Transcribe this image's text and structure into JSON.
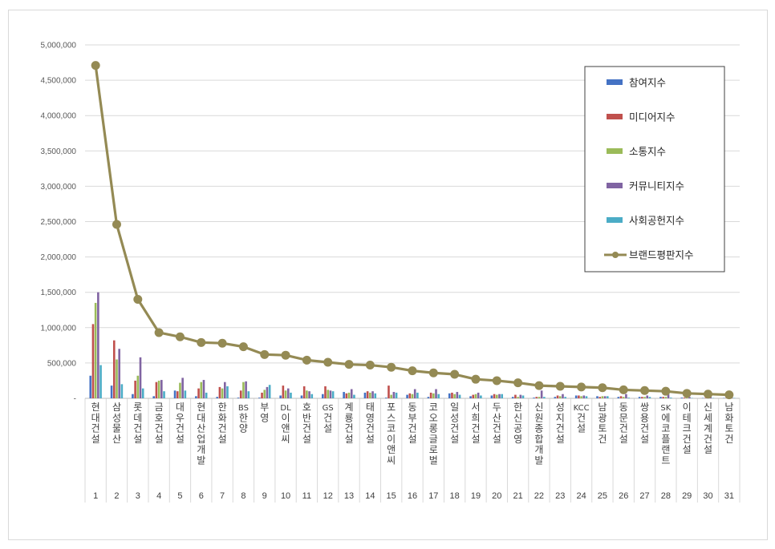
{
  "chart_data": {
    "type": "bar+line",
    "yticks": [
      "5,000,000",
      "4,500,000",
      "4,000,000",
      "3,500,000",
      "3,000,000",
      "2,500,000",
      "2,000,000",
      "1,500,000",
      "1,000,000",
      "500,000",
      "-"
    ],
    "ylim": [
      0,
      5000000
    ],
    "grid": true,
    "legend_position": "top-right",
    "categories": [
      "현대건설",
      "삼성물산",
      "롯데건설",
      "금호건설",
      "대우건설",
      "현대산업개발",
      "한화건설",
      "BS한양",
      "부영",
      "DL이앤씨",
      "호반건설",
      "GS건설",
      "계룡건설",
      "태영건설",
      "포스코이앤씨",
      "동부건설",
      "코오롱글로벌",
      "일성건설",
      "서희건설",
      "두산건설",
      "한신공영",
      "신원종합개발",
      "성지건설",
      "KCC건설",
      "남광토건",
      "동문건설",
      "쌍용건설",
      "SK에코플랜트",
      "이테크건설",
      "신세계건설",
      "남화토건"
    ],
    "ranks": [
      "1",
      "2",
      "3",
      "4",
      "5",
      "6",
      "7",
      "8",
      "9",
      "10",
      "11",
      "12",
      "13",
      "14",
      "15",
      "16",
      "17",
      "18",
      "19",
      "20",
      "21",
      "22",
      "23",
      "24",
      "25",
      "26",
      "27",
      "28",
      "29",
      "30",
      "31"
    ],
    "series": [
      {
        "name": "참여지수",
        "color": "#4472c4",
        "values": [
          320000,
          180000,
          60000,
          30000,
          110000,
          30000,
          20000,
          10000,
          10000,
          40000,
          40000,
          60000,
          90000,
          80000,
          10000,
          50000,
          20000,
          70000,
          30000,
          40000,
          20000,
          10000,
          20000,
          40000,
          30000,
          20000,
          20000,
          20000,
          10000,
          5000,
          5000
        ]
      },
      {
        "name": "미디어지수",
        "color": "#c0504d",
        "values": [
          1050000,
          820000,
          250000,
          230000,
          100000,
          140000,
          160000,
          110000,
          80000,
          180000,
          170000,
          170000,
          70000,
          100000,
          180000,
          70000,
          80000,
          80000,
          50000,
          60000,
          50000,
          20000,
          40000,
          40000,
          20000,
          30000,
          20000,
          20000,
          10000,
          5000,
          5000
        ]
      },
      {
        "name": "소통지수",
        "color": "#9bbb59",
        "values": [
          1350000,
          550000,
          320000,
          250000,
          220000,
          230000,
          140000,
          230000,
          120000,
          110000,
          110000,
          120000,
          80000,
          80000,
          50000,
          60000,
          70000,
          60000,
          60000,
          50000,
          20000,
          20000,
          30000,
          30000,
          30000,
          20000,
          20000,
          20000,
          10000,
          10000,
          10000
        ]
      },
      {
        "name": "커뮤니티지수",
        "color": "#8064a2",
        "values": [
          1500000,
          700000,
          580000,
          260000,
          290000,
          260000,
          230000,
          240000,
          160000,
          140000,
          100000,
          110000,
          130000,
          100000,
          90000,
          130000,
          130000,
          90000,
          80000,
          60000,
          50000,
          110000,
          60000,
          40000,
          30000,
          60000,
          40000,
          60000,
          20000,
          20000,
          10000
        ]
      },
      {
        "name": "사회공헌지수",
        "color": "#4bacc6",
        "values": [
          470000,
          200000,
          140000,
          100000,
          110000,
          80000,
          170000,
          100000,
          190000,
          80000,
          60000,
          100000,
          50000,
          70000,
          80000,
          80000,
          60000,
          50000,
          40000,
          60000,
          40000,
          20000,
          20000,
          30000,
          30000,
          10000,
          20000,
          10000,
          5000,
          5000,
          5000
        ]
      },
      {
        "name": "브랜드평판지수",
        "color": "#948a54",
        "values": [
          4710000,
          2460000,
          1400000,
          930000,
          870000,
          790000,
          780000,
          730000,
          620000,
          610000,
          540000,
          510000,
          480000,
          470000,
          440000,
          390000,
          360000,
          340000,
          270000,
          250000,
          220000,
          180000,
          170000,
          160000,
          150000,
          120000,
          110000,
          100000,
          70000,
          60000,
          50000
        ]
      }
    ]
  }
}
